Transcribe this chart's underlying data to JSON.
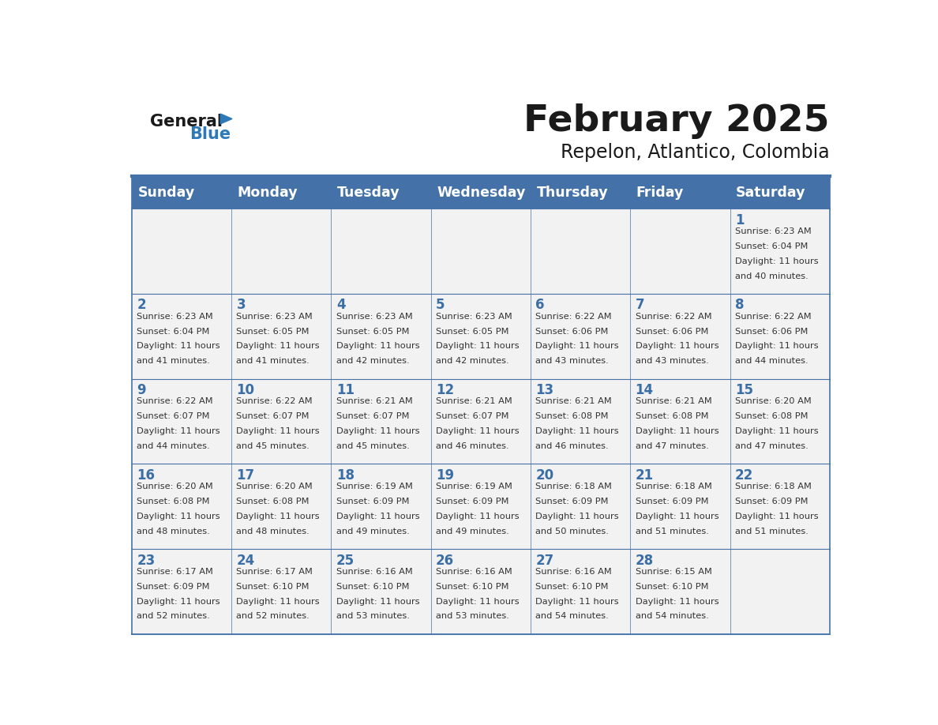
{
  "title": "February 2025",
  "subtitle": "Repelon, Atlantico, Colombia",
  "days_of_week": [
    "Sunday",
    "Monday",
    "Tuesday",
    "Wednesday",
    "Thursday",
    "Friday",
    "Saturday"
  ],
  "header_bg": "#4472a8",
  "header_text_color": "#ffffff",
  "cell_bg_light": "#f2f2f2",
  "cell_bg_white": "#ffffff",
  "day_num_color": "#3a6ea5",
  "text_color": "#333333",
  "border_color": "#4472a8",
  "logo_general_color": "#1a1a1a",
  "logo_blue_color": "#2e7ab8",
  "calendar_data": [
    [
      null,
      null,
      null,
      null,
      null,
      null,
      {
        "day": 1,
        "sunrise": "6:23 AM",
        "sunset": "6:04 PM",
        "daylight": "11 hours and 40 minutes."
      }
    ],
    [
      {
        "day": 2,
        "sunrise": "6:23 AM",
        "sunset": "6:04 PM",
        "daylight": "11 hours and 41 minutes."
      },
      {
        "day": 3,
        "sunrise": "6:23 AM",
        "sunset": "6:05 PM",
        "daylight": "11 hours and 41 minutes."
      },
      {
        "day": 4,
        "sunrise": "6:23 AM",
        "sunset": "6:05 PM",
        "daylight": "11 hours and 42 minutes."
      },
      {
        "day": 5,
        "sunrise": "6:23 AM",
        "sunset": "6:05 PM",
        "daylight": "11 hours and 42 minutes."
      },
      {
        "day": 6,
        "sunrise": "6:22 AM",
        "sunset": "6:06 PM",
        "daylight": "11 hours and 43 minutes."
      },
      {
        "day": 7,
        "sunrise": "6:22 AM",
        "sunset": "6:06 PM",
        "daylight": "11 hours and 43 minutes."
      },
      {
        "day": 8,
        "sunrise": "6:22 AM",
        "sunset": "6:06 PM",
        "daylight": "11 hours and 44 minutes."
      }
    ],
    [
      {
        "day": 9,
        "sunrise": "6:22 AM",
        "sunset": "6:07 PM",
        "daylight": "11 hours and 44 minutes."
      },
      {
        "day": 10,
        "sunrise": "6:22 AM",
        "sunset": "6:07 PM",
        "daylight": "11 hours and 45 minutes."
      },
      {
        "day": 11,
        "sunrise": "6:21 AM",
        "sunset": "6:07 PM",
        "daylight": "11 hours and 45 minutes."
      },
      {
        "day": 12,
        "sunrise": "6:21 AM",
        "sunset": "6:07 PM",
        "daylight": "11 hours and 46 minutes."
      },
      {
        "day": 13,
        "sunrise": "6:21 AM",
        "sunset": "6:08 PM",
        "daylight": "11 hours and 46 minutes."
      },
      {
        "day": 14,
        "sunrise": "6:21 AM",
        "sunset": "6:08 PM",
        "daylight": "11 hours and 47 minutes."
      },
      {
        "day": 15,
        "sunrise": "6:20 AM",
        "sunset": "6:08 PM",
        "daylight": "11 hours and 47 minutes."
      }
    ],
    [
      {
        "day": 16,
        "sunrise": "6:20 AM",
        "sunset": "6:08 PM",
        "daylight": "11 hours and 48 minutes."
      },
      {
        "day": 17,
        "sunrise": "6:20 AM",
        "sunset": "6:08 PM",
        "daylight": "11 hours and 48 minutes."
      },
      {
        "day": 18,
        "sunrise": "6:19 AM",
        "sunset": "6:09 PM",
        "daylight": "11 hours and 49 minutes."
      },
      {
        "day": 19,
        "sunrise": "6:19 AM",
        "sunset": "6:09 PM",
        "daylight": "11 hours and 49 minutes."
      },
      {
        "day": 20,
        "sunrise": "6:18 AM",
        "sunset": "6:09 PM",
        "daylight": "11 hours and 50 minutes."
      },
      {
        "day": 21,
        "sunrise": "6:18 AM",
        "sunset": "6:09 PM",
        "daylight": "11 hours and 51 minutes."
      },
      {
        "day": 22,
        "sunrise": "6:18 AM",
        "sunset": "6:09 PM",
        "daylight": "11 hours and 51 minutes."
      }
    ],
    [
      {
        "day": 23,
        "sunrise": "6:17 AM",
        "sunset": "6:09 PM",
        "daylight": "11 hours and 52 minutes."
      },
      {
        "day": 24,
        "sunrise": "6:17 AM",
        "sunset": "6:10 PM",
        "daylight": "11 hours and 52 minutes."
      },
      {
        "day": 25,
        "sunrise": "6:16 AM",
        "sunset": "6:10 PM",
        "daylight": "11 hours and 53 minutes."
      },
      {
        "day": 26,
        "sunrise": "6:16 AM",
        "sunset": "6:10 PM",
        "daylight": "11 hours and 53 minutes."
      },
      {
        "day": 27,
        "sunrise": "6:16 AM",
        "sunset": "6:10 PM",
        "daylight": "11 hours and 54 minutes."
      },
      {
        "day": 28,
        "sunrise": "6:15 AM",
        "sunset": "6:10 PM",
        "daylight": "11 hours and 54 minutes."
      },
      null
    ]
  ]
}
